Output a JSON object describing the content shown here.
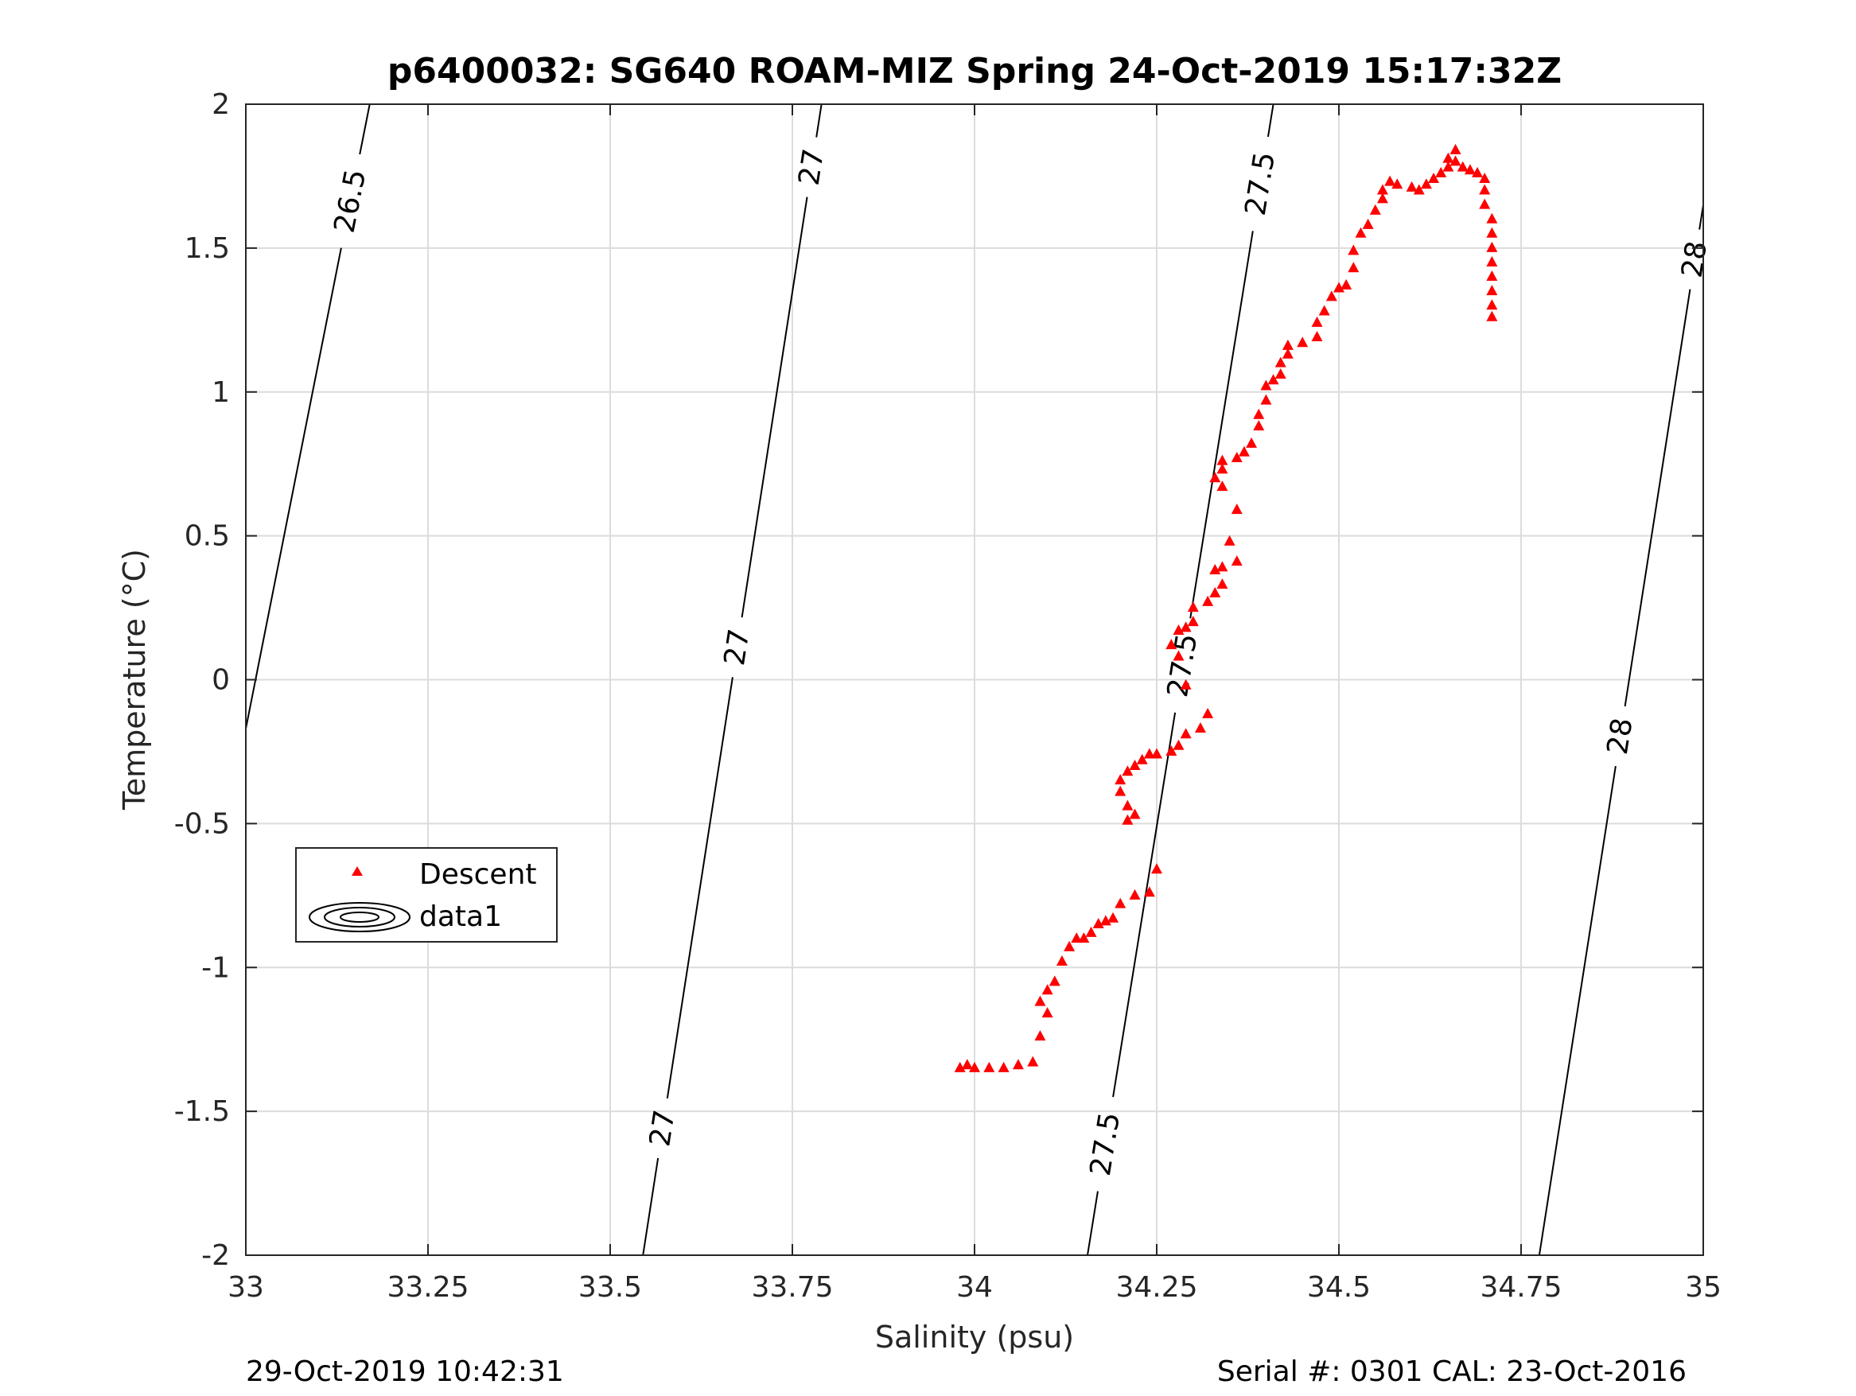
{
  "chart_data": {
    "type": "scatter",
    "title": "p6400032: SG640 ROAM-MIZ Spring 24-Oct-2019 15:17:32Z",
    "xlabel": "Salinity (psu)",
    "ylabel": "Temperature (°C)",
    "xlim": [
      33,
      35
    ],
    "ylim": [
      -2,
      2
    ],
    "grid": true,
    "x_ticks": [
      33,
      33.25,
      33.5,
      33.75,
      34,
      34.25,
      34.5,
      34.75,
      35
    ],
    "x_tick_labels": [
      "33",
      "33.25",
      "33.5",
      "33.75",
      "34",
      "34.25",
      "34.5",
      "34.75",
      "35"
    ],
    "y_ticks": [
      -2,
      -1.5,
      -1,
      -0.5,
      0,
      0.5,
      1,
      1.5,
      2
    ],
    "y_tick_labels": [
      "-2",
      "-1.5",
      "-1",
      "-0.5",
      "0",
      "0.5",
      "1",
      "1.5",
      "2"
    ],
    "legend": {
      "location": "center-left",
      "entries": [
        "Descent",
        "data1"
      ]
    },
    "series": [
      {
        "name": "Descent",
        "marker": "triangle",
        "color": "#ff0000",
        "points": [
          [
            33.98,
            -1.35
          ],
          [
            33.99,
            -1.34
          ],
          [
            34.0,
            -1.35
          ],
          [
            34.02,
            -1.35
          ],
          [
            34.04,
            -1.35
          ],
          [
            34.06,
            -1.34
          ],
          [
            34.08,
            -1.33
          ],
          [
            34.09,
            -1.24
          ],
          [
            34.1,
            -1.16
          ],
          [
            34.09,
            -1.12
          ],
          [
            34.1,
            -1.08
          ],
          [
            34.11,
            -1.05
          ],
          [
            34.12,
            -0.98
          ],
          [
            34.13,
            -0.93
          ],
          [
            34.14,
            -0.9
          ],
          [
            34.15,
            -0.9
          ],
          [
            34.16,
            -0.88
          ],
          [
            34.17,
            -0.85
          ],
          [
            34.18,
            -0.84
          ],
          [
            34.19,
            -0.83
          ],
          [
            34.2,
            -0.78
          ],
          [
            34.22,
            -0.75
          ],
          [
            34.24,
            -0.74
          ],
          [
            34.25,
            -0.66
          ],
          [
            34.21,
            -0.49
          ],
          [
            34.22,
            -0.47
          ],
          [
            34.21,
            -0.44
          ],
          [
            34.2,
            -0.39
          ],
          [
            34.2,
            -0.35
          ],
          [
            34.21,
            -0.32
          ],
          [
            34.22,
            -0.3
          ],
          [
            34.23,
            -0.28
          ],
          [
            34.24,
            -0.26
          ],
          [
            34.25,
            -0.26
          ],
          [
            34.27,
            -0.25
          ],
          [
            34.28,
            -0.23
          ],
          [
            34.29,
            -0.19
          ],
          [
            34.31,
            -0.17
          ],
          [
            34.32,
            -0.12
          ],
          [
            34.29,
            -0.02
          ],
          [
            34.28,
            0.08
          ],
          [
            34.27,
            0.12
          ],
          [
            34.28,
            0.17
          ],
          [
            34.29,
            0.18
          ],
          [
            34.3,
            0.2
          ],
          [
            34.3,
            0.25
          ],
          [
            34.32,
            0.27
          ],
          [
            34.33,
            0.3
          ],
          [
            34.34,
            0.33
          ],
          [
            34.33,
            0.38
          ],
          [
            34.34,
            0.39
          ],
          [
            34.36,
            0.41
          ],
          [
            34.35,
            0.48
          ],
          [
            34.36,
            0.59
          ],
          [
            34.34,
            0.67
          ],
          [
            34.33,
            0.7
          ],
          [
            34.34,
            0.73
          ],
          [
            34.34,
            0.76
          ],
          [
            34.36,
            0.77
          ],
          [
            34.37,
            0.79
          ],
          [
            34.38,
            0.82
          ],
          [
            34.39,
            0.88
          ],
          [
            34.39,
            0.92
          ],
          [
            34.4,
            0.97
          ],
          [
            34.4,
            1.02
          ],
          [
            34.41,
            1.04
          ],
          [
            34.42,
            1.06
          ],
          [
            34.42,
            1.1
          ],
          [
            34.43,
            1.13
          ],
          [
            34.43,
            1.16
          ],
          [
            34.45,
            1.17
          ],
          [
            34.47,
            1.19
          ],
          [
            34.47,
            1.24
          ],
          [
            34.48,
            1.28
          ],
          [
            34.49,
            1.33
          ],
          [
            34.5,
            1.36
          ],
          [
            34.51,
            1.37
          ],
          [
            34.52,
            1.43
          ],
          [
            34.52,
            1.49
          ],
          [
            34.53,
            1.55
          ],
          [
            34.54,
            1.58
          ],
          [
            34.55,
            1.63
          ],
          [
            34.56,
            1.67
          ],
          [
            34.56,
            1.7
          ],
          [
            34.57,
            1.73
          ],
          [
            34.58,
            1.72
          ],
          [
            34.6,
            1.71
          ],
          [
            34.61,
            1.7
          ],
          [
            34.62,
            1.72
          ],
          [
            34.63,
            1.74
          ],
          [
            34.64,
            1.76
          ],
          [
            34.65,
            1.78
          ],
          [
            34.65,
            1.81
          ],
          [
            34.66,
            1.84
          ],
          [
            34.66,
            1.8
          ],
          [
            34.67,
            1.78
          ],
          [
            34.68,
            1.77
          ],
          [
            34.69,
            1.76
          ],
          [
            34.7,
            1.74
          ],
          [
            34.7,
            1.7
          ],
          [
            34.7,
            1.65
          ],
          [
            34.71,
            1.6
          ],
          [
            34.71,
            1.55
          ],
          [
            34.71,
            1.5
          ],
          [
            34.71,
            1.45
          ],
          [
            34.71,
            1.4
          ],
          [
            34.71,
            1.35
          ],
          [
            34.71,
            1.3
          ],
          [
            34.71,
            1.26
          ]
        ]
      },
      {
        "name": "data1",
        "type": "contour",
        "color": "#000000",
        "levels": [
          {
            "label": "26.5",
            "segment": [
              [
                33.0,
                -0.17
              ],
              [
                33.17,
                2.0
              ]
            ],
            "label_positions": [
              [
                33.13,
                1.67
              ]
            ]
          },
          {
            "label": "27",
            "segment": [
              [
                33.545,
                -2.0
              ],
              [
                33.79,
                2.0
              ]
            ],
            "label_positions": [
              [
                33.78,
                1.78
              ],
              [
                33.63,
                0.13
              ],
              [
                33.55,
                -1.55
              ]
            ]
          },
          {
            "label": "27.5",
            "segment": [
              [
                34.155,
                -2.0
              ],
              [
                34.41,
                2.0
              ]
            ],
            "label_positions": [
              [
                34.4,
                1.72
              ],
              [
                34.26,
                0.06
              ],
              [
                34.17,
                -1.61
              ]
            ]
          },
          {
            "label": "28",
            "segment": [
              [
                34.775,
                -2.0
              ],
              [
                35.0,
                1.65
              ]
            ],
            "label_positions": [
              [
                34.99,
                1.46
              ],
              [
                34.87,
                -0.19
              ]
            ]
          }
        ]
      }
    ]
  },
  "footer": {
    "left": "29-Oct-2019 10:42:31",
    "right": "Serial #: 0301  CAL: 23-Oct-2016"
  }
}
